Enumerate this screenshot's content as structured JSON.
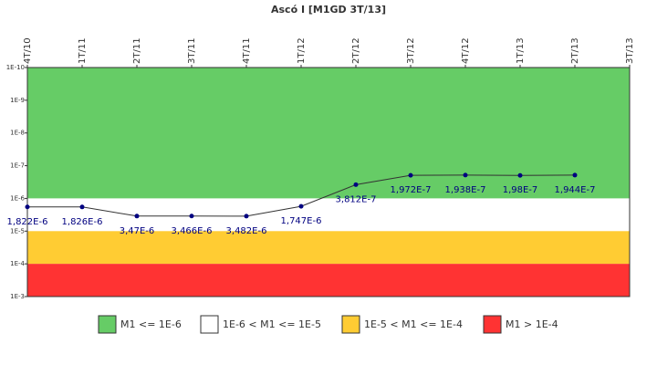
{
  "chart_data": {
    "type": "line",
    "title": "Ascó I [M1GD 3T/13]",
    "categories": [
      "4T/10",
      "1T/11",
      "2T/11",
      "3T/11",
      "4T/11",
      "1T/12",
      "2T/12",
      "3T/12",
      "4T/12",
      "1T/13",
      "2T/13",
      "3T/13"
    ],
    "series": [
      {
        "name": "M1",
        "color": "#000080",
        "line_color": "#333333",
        "values": [
          1.822e-06,
          1.826e-06,
          3.47e-06,
          3.466e-06,
          3.482e-06,
          1.747e-06,
          3.812e-07,
          1.972e-07,
          1.938e-07,
          1.98e-07,
          1.944e-07,
          null
        ],
        "value_labels": [
          "1,822E-6",
          "1,826E-6",
          "3,47E-6",
          "3,466E-6",
          "3,482E-6",
          "1,747E-6",
          "3,812E-7",
          "1,972E-7",
          "1,938E-7",
          "1,98E-7",
          "1,944E-7",
          null
        ]
      }
    ],
    "log_scale": true,
    "inverted_y": true,
    "ylim": [
      1e-10,
      0.001
    ],
    "yticks": [
      {
        "value": 1e-10,
        "label": "1E-10"
      },
      {
        "value": 1e-09,
        "label": "1E-9"
      },
      {
        "value": 1e-08,
        "label": "1E-8"
      },
      {
        "value": 1e-07,
        "label": "1E-7"
      },
      {
        "value": 1e-06,
        "label": "1E-6"
      },
      {
        "value": 1e-05,
        "label": "1E-5"
      },
      {
        "value": 0.0001,
        "label": "1E-4"
      },
      {
        "value": 0.001,
        "label": "1E-3"
      }
    ],
    "bands": [
      {
        "label": "M1 <= 1E-6",
        "color": "#66cc66",
        "range": [
          1e-10,
          1e-06
        ]
      },
      {
        "label": "1E-6 < M1 <= 1E-5",
        "color": "#ffffff",
        "range": [
          1e-06,
          1e-05
        ]
      },
      {
        "label": "1E-5 < M1 <= 1E-4",
        "color": "#ffcc33",
        "range": [
          1e-05,
          0.0001
        ]
      },
      {
        "label": "M1 > 1E-4",
        "color": "#ff3333",
        "range": [
          0.0001,
          0.001
        ]
      }
    ]
  }
}
